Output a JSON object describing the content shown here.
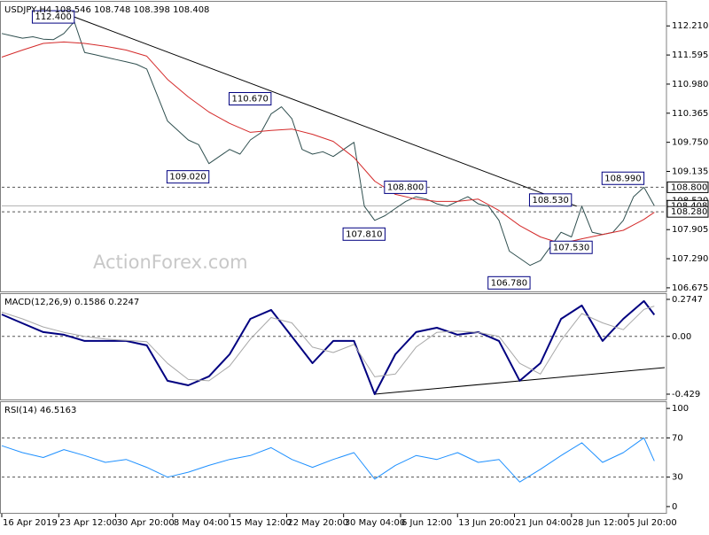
{
  "chart_data": [
    {
      "type": "line",
      "title": "USDJPY,H4  108.546 108.748 108.398 108.408",
      "watermark": "ActionForex.com",
      "xlim": [
        0,
        128
      ],
      "ylim": [
        106.58,
        112.72
      ],
      "yticks": [
        {
          "value": 112.21,
          "label": "112.210"
        },
        111.595,
        {
          "value": 110.98,
          "label": "110.980"
        },
        110.365,
        {
          "value": 109.75,
          "label": "109.750"
        },
        109.135,
        {
          "value": 108.52,
          "label": "108.520"
        },
        107.905,
        {
          "value": 107.29,
          "label": "107.290"
        },
        106.675
      ],
      "series": [
        {
          "color": "#2f4f4f",
          "x": [
            0,
            2,
            4,
            6,
            8,
            10,
            12,
            14,
            16,
            18,
            20,
            22,
            24,
            26,
            28,
            30,
            32,
            34,
            36,
            38,
            40,
            42,
            44,
            46,
            48,
            50,
            52,
            54,
            56,
            58,
            60,
            62,
            64,
            66,
            68,
            70,
            72,
            74,
            76,
            78,
            80,
            82,
            84,
            86,
            88,
            90,
            92,
            94,
            96,
            98,
            100,
            102,
            104,
            106,
            108,
            110,
            112,
            114,
            116,
            118,
            120,
            122,
            124,
            126
          ],
          "values": [
            112.05,
            112.0,
            111.95,
            111.98,
            111.93,
            111.92,
            112.05,
            112.3,
            111.65,
            111.6,
            111.55,
            111.5,
            111.45,
            111.4,
            111.3,
            110.75,
            110.2,
            110.0,
            109.8,
            109.7,
            109.3,
            109.45,
            109.6,
            109.5,
            109.8,
            109.95,
            110.35,
            110.5,
            110.25,
            109.6,
            109.5,
            109.55,
            109.45,
            109.6,
            109.75,
            108.4,
            108.1,
            108.2,
            108.35,
            108.5,
            108.6,
            108.55,
            108.45,
            108.4,
            108.5,
            108.6,
            108.45,
            108.4,
            108.1,
            107.45,
            107.3,
            107.15,
            107.25,
            107.55,
            107.85,
            107.75,
            108.4,
            107.85,
            107.8,
            107.85,
            108.1,
            108.6,
            108.8,
            108.408
          ]
        },
        {
          "color": "#d42a2a",
          "x": [
            0,
            4,
            8,
            12,
            16,
            20,
            24,
            28,
            32,
            36,
            40,
            44,
            48,
            52,
            56,
            60,
            64,
            68,
            72,
            76,
            80,
            84,
            88,
            92,
            96,
            100,
            104,
            108,
            112,
            116,
            120,
            124,
            126
          ],
          "values": [
            111.55,
            111.7,
            111.84,
            111.87,
            111.84,
            111.78,
            111.7,
            111.57,
            111.08,
            110.71,
            110.39,
            110.15,
            109.96,
            110.0,
            110.03,
            109.92,
            109.77,
            109.43,
            108.93,
            108.65,
            108.55,
            108.5,
            108.5,
            108.55,
            108.31,
            107.99,
            107.75,
            107.61,
            107.71,
            107.8,
            107.89,
            108.12,
            108.27
          ]
        }
      ],
      "levels": [
        {
          "value": 108.8,
          "label": "108.800"
        },
        {
          "value": 108.28,
          "label": "108.280"
        }
      ],
      "last": {
        "value": 108.408,
        "label": "108.408"
      },
      "annotations": [
        {
          "x": 14,
          "value": 112.4,
          "label": "112.400"
        },
        {
          "x": 52,
          "value": 110.67,
          "label": "110.670"
        },
        {
          "x": 40,
          "value": 109.02,
          "label": "109.020"
        },
        {
          "x": 82,
          "value": 108.8,
          "label": "108.800"
        },
        {
          "x": 74,
          "value": 107.81,
          "label": "107.810"
        },
        {
          "x": 110,
          "value": 108.53,
          "label": "108.530"
        },
        {
          "x": 124,
          "value": 108.99,
          "label": "108.990"
        },
        {
          "x": 114,
          "value": 107.53,
          "label": "107.530"
        },
        {
          "x": 102,
          "value": 106.78,
          "label": "106.780"
        }
      ],
      "trendlines": [
        {
          "x": [
            14,
            111
          ],
          "y": [
            112.4,
            108.4
          ]
        }
      ]
    },
    {
      "type": "line",
      "title": "MACD(12,26,9) 0.1586 0.2247",
      "xlim": [
        0,
        128
      ],
      "ylim": [
        -0.475,
        0.314
      ],
      "yticks": [
        0.2747,
        {
          "value": 0,
          "label": "0.00"
        },
        -0.429
      ],
      "levels": [
        0
      ],
      "series": [
        {
          "color": "#000080",
          "width": 2,
          "x": [
            0,
            4,
            8,
            12,
            16,
            20,
            24,
            28,
            32,
            36,
            40,
            44,
            48,
            52,
            56,
            60,
            64,
            68,
            72,
            76,
            80,
            84,
            88,
            92,
            96,
            100,
            104,
            108,
            112,
            116,
            120,
            124,
            126
          ],
          "values": [
            0.163,
            0.097,
            0.032,
            0.012,
            -0.034,
            -0.034,
            -0.034,
            -0.067,
            -0.33,
            -0.363,
            -0.297,
            -0.133,
            0.13,
            0.196,
            -0.001,
            -0.199,
            -0.034,
            -0.034,
            -0.429,
            -0.133,
            0.032,
            0.064,
            0.012,
            0.032,
            -0.034,
            -0.33,
            -0.199,
            0.13,
            0.229,
            -0.034,
            0.13,
            0.262,
            0.16
          ]
        },
        {
          "color": "#a8a8a8",
          "width": 1,
          "x": [
            0,
            4,
            8,
            12,
            16,
            20,
            24,
            28,
            32,
            36,
            40,
            44,
            48,
            52,
            56,
            60,
            64,
            68,
            72,
            76,
            80,
            84,
            88,
            92,
            96,
            100,
            104,
            108,
            112,
            116,
            120,
            124,
            126
          ],
          "values": [
            0.18,
            0.13,
            0.07,
            0.03,
            0,
            -0.02,
            -0.03,
            -0.04,
            -0.2,
            -0.32,
            -0.33,
            -0.22,
            -0.02,
            0.14,
            0.1,
            -0.08,
            -0.12,
            -0.06,
            -0.3,
            -0.28,
            -0.08,
            0.03,
            0.04,
            0.03,
            0,
            -0.2,
            -0.28,
            -0.03,
            0.17,
            0.1,
            0.05,
            0.2,
            0.2247
          ]
        }
      ],
      "trendlines": [
        {
          "x": [
            72,
            128
          ],
          "y": [
            -0.429,
            -0.232
          ]
        }
      ]
    },
    {
      "type": "line",
      "title": "RSI(14) 46.5163",
      "xlim": [
        0,
        128
      ],
      "xticks": [
        {
          "value": 0,
          "label": "16 Apr 2019"
        },
        {
          "value": 11,
          "label": "23 Apr 12:00"
        },
        {
          "value": 22,
          "label": "30 Apr 20:00"
        },
        {
          "value": 33,
          "label": "8 May 04:00"
        },
        {
          "value": 44,
          "label": "15 May 12:00"
        },
        {
          "value": 55,
          "label": "22 May 20:00"
        },
        {
          "value": 66,
          "label": "30 May 04:00"
        },
        {
          "value": 77,
          "label": "6 Jun 12:00"
        },
        {
          "value": 88,
          "label": "13 Jun 20:00"
        },
        {
          "value": 99,
          "label": "21 Jun 04:00"
        },
        {
          "value": 110,
          "label": "28 Jun 12:00"
        },
        {
          "value": 121,
          "label": "5 Jul 20:00"
        }
      ],
      "ylim": [
        -7.3,
        106.4
      ],
      "yticks": [
        100,
        70,
        30,
        0
      ],
      "levels": [
        70,
        30
      ],
      "series": [
        {
          "color": "#1e90ff",
          "width": 1,
          "x": [
            0,
            4,
            8,
            12,
            16,
            20,
            24,
            28,
            32,
            36,
            40,
            44,
            48,
            52,
            56,
            60,
            64,
            68,
            72,
            76,
            80,
            84,
            88,
            92,
            96,
            100,
            104,
            108,
            112,
            116,
            120,
            124,
            126
          ],
          "values": [
            62,
            55,
            50,
            58,
            52,
            45,
            48,
            40,
            30,
            35,
            42,
            48,
            52,
            60,
            48,
            40,
            48,
            55,
            28,
            42,
            52,
            48,
            55,
            45,
            48,
            25,
            38,
            52,
            65,
            45,
            55,
            70,
            46.5
          ]
        }
      ]
    }
  ]
}
